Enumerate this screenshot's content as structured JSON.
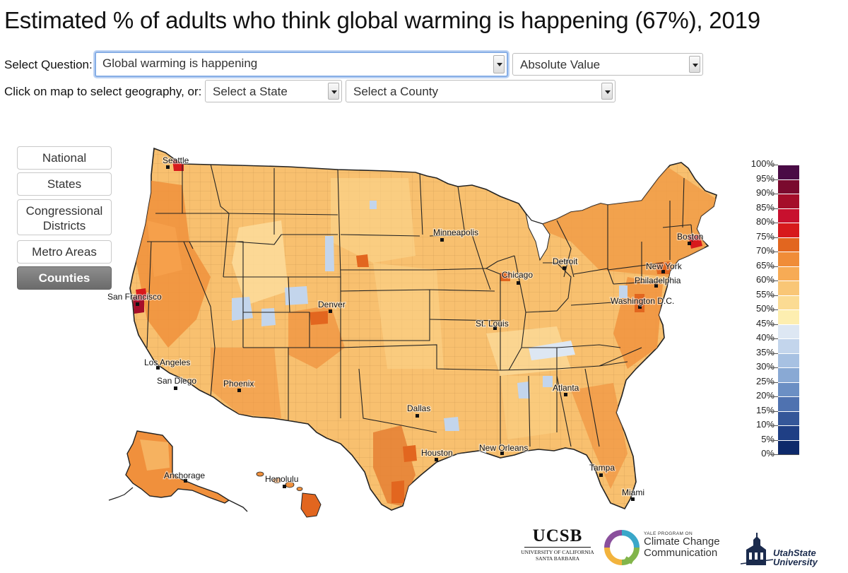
{
  "title": "Estimated % of adults who think global warming is happening (67%), 2019",
  "controls": {
    "question_label": "Select Question:",
    "question_value": "Global warming is happening",
    "measure_value": "Absolute Value",
    "geo_label": "Click on map to select geography, or:",
    "state_value": "Select a State",
    "county_value": "Select a County"
  },
  "geography_buttons": [
    {
      "label": "National",
      "active": false
    },
    {
      "label": "States",
      "active": false
    },
    {
      "label": "Congressional Districts",
      "active": false
    },
    {
      "label": "Metro Areas",
      "active": false
    },
    {
      "label": "Counties",
      "active": true
    }
  ],
  "cities": [
    "Seattle",
    "Minneapolis",
    "Boston",
    "Detroit",
    "Chicago",
    "New York",
    "Philadelphia",
    "Washington D.C.",
    "San Francisco",
    "Denver",
    "St. Louis",
    "Los Angeles",
    "San Diego",
    "Phoenix",
    "Atlanta",
    "Dallas",
    "Houston",
    "New Orleans",
    "Tampa",
    "Miami",
    "Anchorage",
    "Honolulu"
  ],
  "legend": {
    "labels": [
      "100%",
      "95%",
      "90%",
      "85%",
      "80%",
      "75%",
      "70%",
      "65%",
      "60%",
      "55%",
      "50%",
      "45%",
      "40%",
      "35%",
      "30%",
      "25%",
      "20%",
      "15%",
      "10%",
      "5%",
      "0%"
    ],
    "colors": [
      "#4a0b45",
      "#7a0a2e",
      "#a50e2a",
      "#c8102e",
      "#d7191c",
      "#e2661f",
      "#f08c38",
      "#f7ab55",
      "#f9c676",
      "#fbdb93",
      "#fdeeb0",
      "#dde7f3",
      "#c3d5ec",
      "#a7c1e2",
      "#89a9d4",
      "#6b8fc4",
      "#4f72b0",
      "#355799",
      "#1f3f85",
      "#0e2a6b"
    ]
  },
  "logos": {
    "ucsb": "UCSB",
    "ucsb_sub": "UNIVERSITY OF CALIFORNIA SANTA BARBARA",
    "yale_small": "YALE PROGRAM ON",
    "yale_big": "Climate Change Communication",
    "usu": "UtahState University"
  },
  "colors": {
    "base_fill": "#f8c06f",
    "high_fill": "#f0903c",
    "very_high_fill": "#c8102e",
    "low_fill": "#fde6a4",
    "below_half_fill": "#c3d5ec",
    "focus_outline": "#86aee6"
  }
}
